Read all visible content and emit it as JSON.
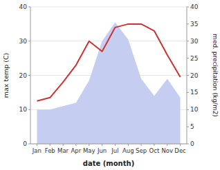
{
  "chart_data": {
    "type": "line",
    "xlabel": "date (month)",
    "ylabel": "max temp (C)",
    "y2label": "med. precipitation (kg/m2)",
    "categories": [
      "Jan",
      "Feb",
      "Mar",
      "Apr",
      "May",
      "Jun",
      "Jul",
      "Aug",
      "Sep",
      "Oct",
      "Nov",
      "Dec"
    ],
    "series": [
      {
        "type": "area",
        "axis": "y2",
        "color": "#c5cef0",
        "values": [
          10.0,
          10.0,
          11.0,
          12.0,
          18.5,
          30.0,
          35.5,
          30.5,
          19.0,
          14.0,
          19.0,
          13.5
        ]
      },
      {
        "type": "line",
        "color": "#cc3333",
        "values": [
          12.5,
          13.5,
          18.0,
          23.0,
          30.0,
          27.0,
          34.0,
          35.0,
          35.0,
          33.0,
          26.0,
          19.5
        ]
      }
    ],
    "ylim": [
      0,
      40
    ],
    "yticks": [
      0,
      10,
      20,
      30,
      40
    ],
    "y2lim": [
      0,
      40
    ],
    "y2ticks": [
      0,
      5,
      10,
      15,
      20,
      25,
      30,
      35,
      40
    ],
    "grid": true
  }
}
